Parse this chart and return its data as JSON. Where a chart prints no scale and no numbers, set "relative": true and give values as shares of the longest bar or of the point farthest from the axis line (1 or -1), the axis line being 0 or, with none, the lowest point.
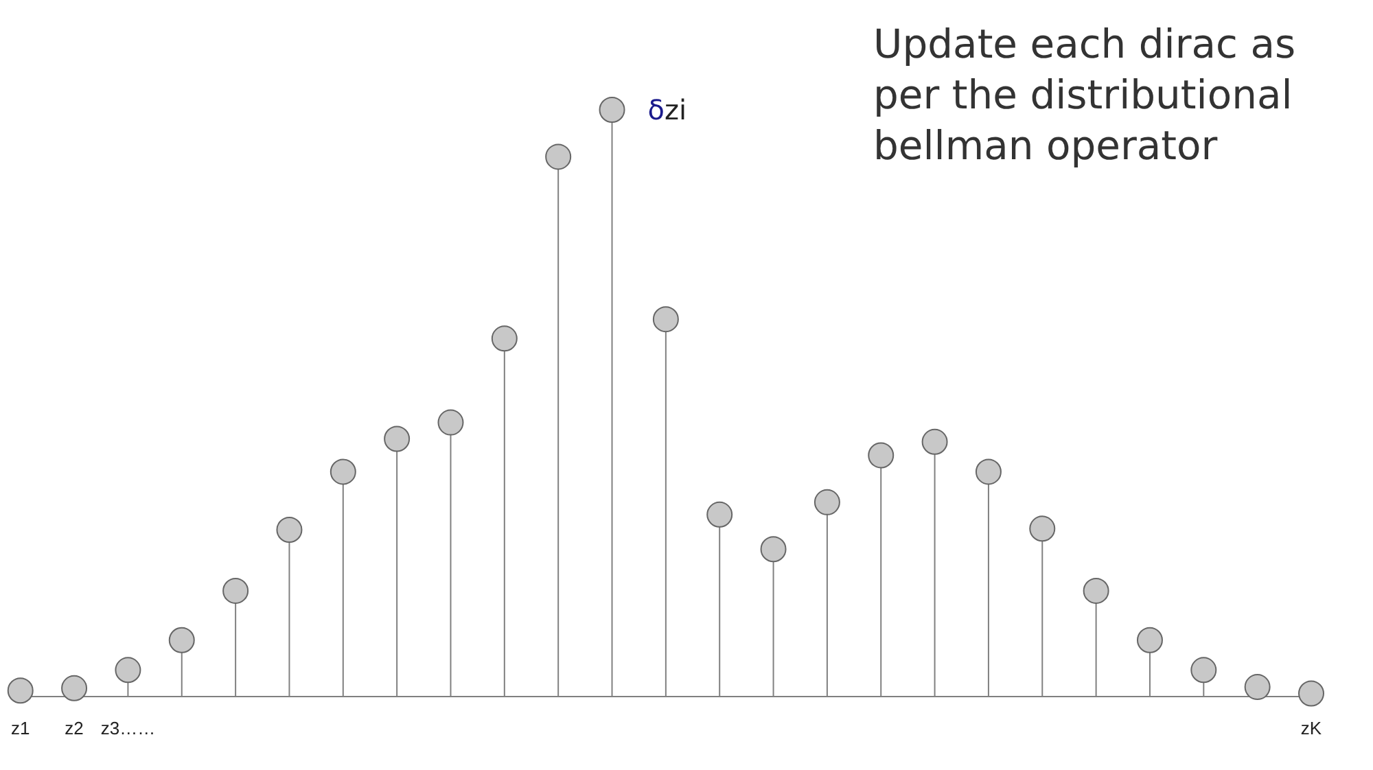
{
  "chart_data": {
    "type": "lollipop",
    "relative": true,
    "marker": "circle",
    "color": "#c8c8c8",
    "categories": [
      "z1",
      "z2",
      "z3……",
      null,
      null,
      null,
      null,
      null,
      null,
      null,
      null,
      null,
      null,
      null,
      null,
      null,
      null,
      null,
      null,
      null,
      null,
      null,
      null,
      null,
      "zK"
    ],
    "values": [
      0.01,
      0.014,
      0.045,
      0.096,
      0.18,
      0.284,
      0.383,
      0.439,
      0.467,
      0.61,
      0.92,
      1,
      0.643,
      0.31,
      0.251,
      0.331,
      0.411,
      0.434,
      0.383,
      0.286,
      0.18,
      0.096,
      0.045,
      0.016,
      0.005
    ],
    "annotations": [
      "δzi",
      "Update each dirac as per the distributional bellman operator"
    ]
  }
}
